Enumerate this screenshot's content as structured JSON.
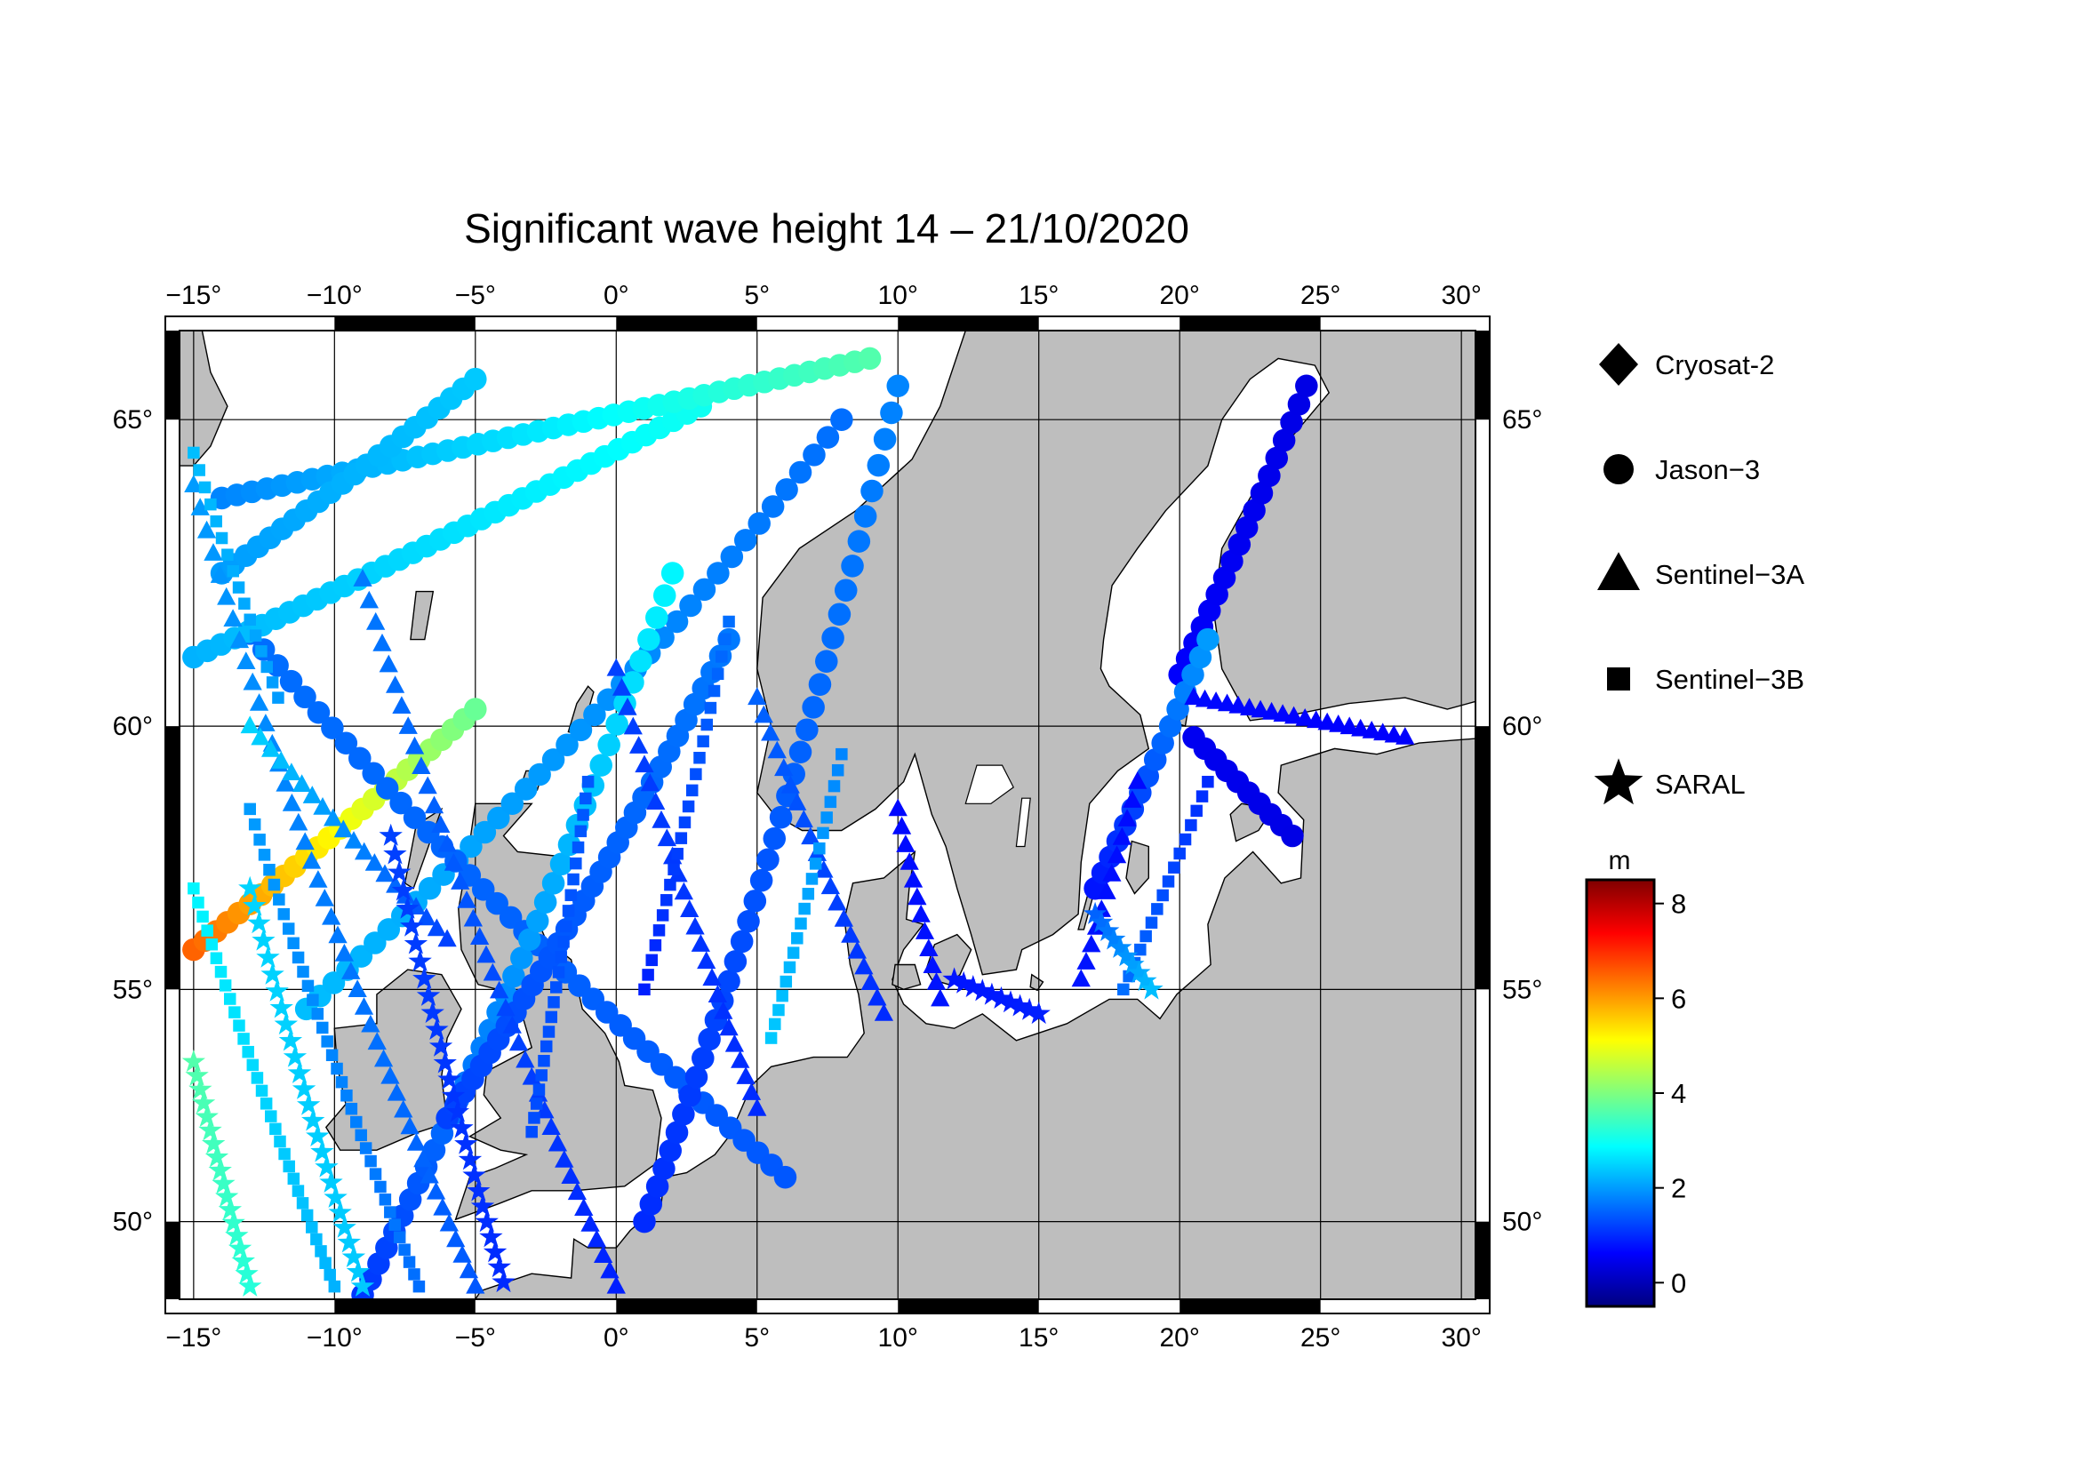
{
  "title": "Significant wave height 14 – 21/10/2020",
  "map": {
    "lon_range": [
      -15.5,
      30.5
    ],
    "lat_range": [
      48.2,
      66.3
    ],
    "lon_ticks": [
      -15,
      -10,
      -5,
      0,
      5,
      10,
      15,
      20,
      25,
      30
    ],
    "lat_ticks": [
      50,
      55,
      60,
      65
    ],
    "grid": true,
    "frame": "alternating black/white degree bars",
    "land_color": "#bebebe",
    "sea_color": "#ffffff"
  },
  "legend": {
    "placement": "right",
    "items": [
      {
        "label": "Cryosat-2",
        "icon": "diamond-icon"
      },
      {
        "label": "Jason−3",
        "icon": "circle-icon"
      },
      {
        "label": "Sentinel−3A",
        "icon": "triangle-icon"
      },
      {
        "label": "Sentinel−3B",
        "icon": "square-icon"
      },
      {
        "label": "SARAL",
        "icon": "star-icon"
      }
    ]
  },
  "colorbar": {
    "unit": "m",
    "range": [
      -0.5,
      8.5
    ],
    "ticks": [
      0,
      2,
      4,
      6,
      8
    ],
    "colormap": [
      "#00007f",
      "#0000ff",
      "#007fff",
      "#00ffff",
      "#7fff7f",
      "#ffff00",
      "#ff7f00",
      "#ff0000",
      "#7f0000"
    ]
  },
  "chart_data": {
    "type": "scatter",
    "title": "Significant wave height 14 – 21/10/2020",
    "xlabel": "",
    "ylabel": "",
    "x_unit": "degrees longitude",
    "y_unit": "degrees latitude",
    "value_unit": "m",
    "series": [
      {
        "name": "Jason−3",
        "marker": "circle",
        "tracks": [
          {
            "from": [
              -15,
              55.8
            ],
            "to": [
              -5,
              60.3
            ],
            "v_from": 6.5,
            "v_to": 3.8,
            "n": 26
          },
          {
            "from": [
              -11,
              54.6
            ],
            "to": [
              8,
              65.0
            ],
            "v_from": 2.3,
            "v_to": 1.6,
            "n": 40
          },
          {
            "from": [
              -13,
              61.6
            ],
            "to": [
              6,
              51.0
            ],
            "v_from": 1.6,
            "v_to": 1.4,
            "n": 40
          },
          {
            "from": [
              -9,
              48.3
            ],
            "to": [
              2,
              62.6
            ],
            "v_from": 1.1,
            "v_to": 2.8,
            "n": 40
          },
          {
            "from": [
              1,
              50.0
            ],
            "to": [
              10,
              65.5
            ],
            "v_from": 1.0,
            "v_to": 1.8,
            "n": 40
          },
          {
            "from": [
              -15,
              61.2
            ],
            "to": [
              3,
              65.2
            ],
            "v_from": 2.2,
            "v_to": 3.0,
            "n": 38
          },
          {
            "from": [
              -14,
              63.8
            ],
            "to": [
              9,
              65.9
            ],
            "v_from": 1.8,
            "v_to": 3.6,
            "n": 44
          },
          {
            "from": [
              -14,
              62.6
            ],
            "to": [
              -5,
              65.6
            ],
            "v_from": 2.0,
            "v_to": 2.4,
            "n": 22
          },
          {
            "from": [
              -6,
              52.3
            ],
            "to": [
              4,
              61.5
            ],
            "v_from": 1.2,
            "v_to": 1.7,
            "n": 34
          },
          {
            "from": [
              20,
              60.9
            ],
            "to": [
              24.5,
              65.5
            ],
            "v_from": 0.6,
            "v_to": 0.4,
            "n": 18
          },
          {
            "from": [
              17,
              57.0
            ],
            "to": [
              21,
              61.5
            ],
            "v_from": 0.8,
            "v_to": 2.0,
            "n": 16
          },
          {
            "from": [
              20.5,
              59.8
            ],
            "to": [
              24,
              58.0
            ],
            "v_from": 0.5,
            "v_to": 0.4,
            "n": 10
          }
        ]
      },
      {
        "name": "Sentinel−3A",
        "marker": "triangle",
        "tracks": [
          {
            "from": [
              -15,
              64.0
            ],
            "to": [
              -5,
              48.5
            ],
            "v_from": 2.0,
            "v_to": 1.4,
            "n": 44
          },
          {
            "from": [
              -9,
              62.5
            ],
            "to": [
              0,
              48.5
            ],
            "v_from": 1.7,
            "v_to": 0.9,
            "n": 40
          },
          {
            "from": [
              0,
              61.0
            ],
            "to": [
              5,
              52.5
            ],
            "v_from": 1.2,
            "v_to": 1.0,
            "n": 26
          },
          {
            "from": [
              5,
              60.5
            ],
            "to": [
              9.5,
              54.5
            ],
            "v_from": 1.5,
            "v_to": 1.0,
            "n": 20
          },
          {
            "from": [
              -13,
              60.0
            ],
            "to": [
              -6,
              56.0
            ],
            "v_from": 2.5,
            "v_to": 1.2,
            "n": 20
          },
          {
            "from": [
              10,
              58.5
            ],
            "to": [
              11.5,
              54.8
            ],
            "v_from": 0.7,
            "v_to": 0.8,
            "n": 12
          },
          {
            "from": [
              16.5,
              55.2
            ],
            "to": [
              18.5,
              59.0
            ],
            "v_from": 0.8,
            "v_to": 0.7,
            "n": 12
          },
          {
            "from": [
              20.5,
              60.5
            ],
            "to": [
              28,
              59.8
            ],
            "v_from": 0.7,
            "v_to": 0.6,
            "n": 20
          }
        ]
      },
      {
        "name": "Sentinel−3B",
        "marker": "square",
        "tracks": [
          {
            "from": [
              -15,
              57.0
            ],
            "to": [
              -10,
              48.5
            ],
            "v_from": 2.8,
            "v_to": 2.2,
            "n": 32
          },
          {
            "from": [
              -13,
              58.5
            ],
            "to": [
              -7,
              48.5
            ],
            "v_from": 2.0,
            "v_to": 1.6,
            "n": 36
          },
          {
            "from": [
              -3,
              52.0
            ],
            "to": [
              -1,
              59.0
            ],
            "v_from": 1.3,
            "v_to": 1.4,
            "n": 24
          },
          {
            "from": [
              1,
              55.0
            ],
            "to": [
              4,
              61.8
            ],
            "v_from": 0.9,
            "v_to": 1.6,
            "n": 24
          },
          {
            "from": [
              5.5,
              54.0
            ],
            "to": [
              8,
              59.5
            ],
            "v_from": 2.4,
            "v_to": 1.8,
            "n": 20
          },
          {
            "from": [
              -15,
              64.5
            ],
            "to": [
              -12,
              60.5
            ],
            "v_from": 2.3,
            "v_to": 2.0,
            "n": 16
          },
          {
            "from": [
              18,
              55.0
            ],
            "to": [
              21,
              59.0
            ],
            "v_from": 1.6,
            "v_to": 1.0,
            "n": 16
          }
        ]
      },
      {
        "name": "SARAL",
        "marker": "star",
        "tracks": [
          {
            "from": [
              -15,
              53.5
            ],
            "to": [
              -13,
              48.5
            ],
            "v_from": 3.6,
            "v_to": 3.2,
            "n": 18
          },
          {
            "from": [
              -13,
              57.0
            ],
            "to": [
              -9,
              48.5
            ],
            "v_from": 2.5,
            "v_to": 2.4,
            "n": 26
          },
          {
            "from": [
              -8,
              58.0
            ],
            "to": [
              -4,
              48.6
            ],
            "v_from": 1.2,
            "v_to": 1.0,
            "n": 28
          },
          {
            "from": [
              12,
              55.2
            ],
            "to": [
              15,
              54.5
            ],
            "v_from": 0.8,
            "v_to": 0.9,
            "n": 10
          },
          {
            "from": [
              17,
              56.5
            ],
            "to": [
              19,
              55.0
            ],
            "v_from": 1.5,
            "v_to": 2.3,
            "n": 10
          }
        ]
      },
      {
        "name": "Cryosat-2",
        "marker": "diamond",
        "tracks": []
      }
    ]
  }
}
